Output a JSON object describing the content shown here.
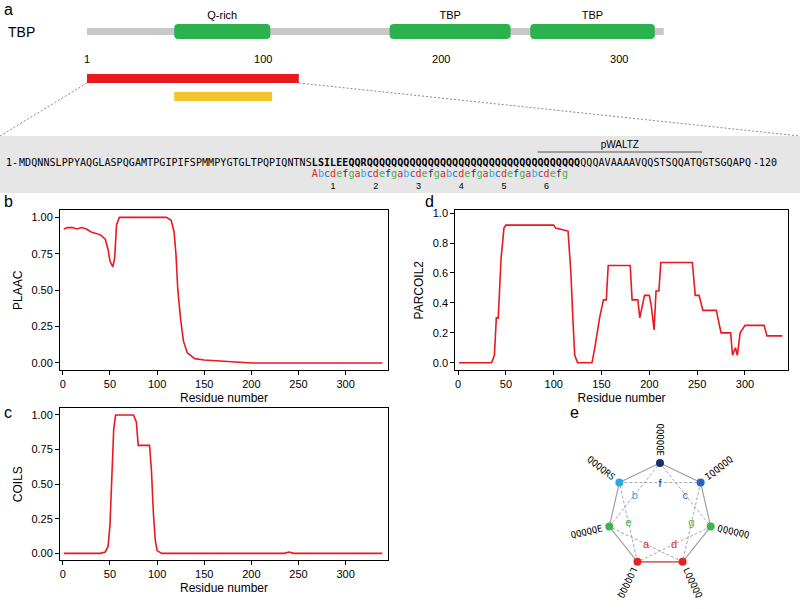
{
  "panel_a": {
    "label": "a",
    "protein": {
      "name": "TBP",
      "length": 325,
      "domain_color": "#2bb24c",
      "domains": [
        {
          "label": "Q-rich",
          "start": 50,
          "end": 104
        },
        {
          "label": "TBP",
          "start": 171,
          "end": 239
        },
        {
          "label": "TBP",
          "start": 250,
          "end": 320
        }
      ],
      "ticks": [
        1,
        100,
        200,
        300
      ]
    },
    "regions": [
      {
        "start": 1,
        "end": 120,
        "color": "#e8191f"
      },
      {
        "start": 50,
        "end": 105,
        "color": "#f4c430"
      }
    ],
    "sequence": {
      "start_label": "1-",
      "end_label": "-120",
      "residues": "MDQNNSLPPYAQGLASPQGAMTPGIPIFSPMMPYGTGLTPQPIQNTNSLSILEEQQRQQQQQQQQQQQQQQQQQQQQQQQQQQQQQQQQQQQQQQAVAAAAVQQSTSQQATQGTSGQAPQ",
      "bold_start": 49,
      "bold_end": 92,
      "motif": {
        "label": "pWALTZ",
        "start": 86,
        "end": 112
      },
      "heptads": {
        "start": 49,
        "letters": "Abcdefgabcdefgabcdefgabcdefgabcdefgabcdefg",
        "numbers": [
          1,
          2,
          3,
          4,
          5,
          6
        ]
      }
    }
  },
  "chart_data": [
    {
      "panel_label": "b",
      "type": "line",
      "color": "#e8191f",
      "xlabel": "Residue number",
      "ylabel": "PLAAC",
      "x": [
        1,
        5,
        10,
        15,
        20,
        25,
        30,
        35,
        40,
        45,
        48,
        50,
        53,
        55,
        57,
        60,
        70,
        80,
        90,
        100,
        110,
        115,
        118,
        120,
        122,
        125,
        128,
        132,
        140,
        150,
        170,
        200,
        250,
        300,
        339
      ],
      "values": [
        0.92,
        0.93,
        0.93,
        0.92,
        0.93,
        0.92,
        0.9,
        0.89,
        0.88,
        0.85,
        0.78,
        0.7,
        0.66,
        0.72,
        0.95,
        1.0,
        1.0,
        1.0,
        1.0,
        1.0,
        1.0,
        0.98,
        0.9,
        0.75,
        0.5,
        0.3,
        0.15,
        0.07,
        0.03,
        0.02,
        0.01,
        0,
        0,
        0,
        0
      ],
      "xlim": [
        -3,
        345
      ],
      "xticks": [
        0,
        50,
        100,
        150,
        200,
        250,
        300
      ],
      "ylim": [
        -0.05,
        1.05
      ],
      "yticks": [
        {
          "value": 0,
          "label": "0.00"
        },
        {
          "value": 0.25,
          "label": "0.25"
        },
        {
          "value": 0.5,
          "label": "0.50"
        },
        {
          "value": 0.75,
          "label": "0.75"
        },
        {
          "value": 1,
          "label": "1.00"
        }
      ],
      "grid": false
    },
    {
      "panel_label": "c",
      "type": "line",
      "color": "#e8191f",
      "xlabel": "Residue number",
      "ylabel": "COILS",
      "x": [
        1,
        40,
        45,
        48,
        50,
        52,
        54,
        56,
        75,
        78,
        80,
        92,
        94,
        96,
        98,
        100,
        105,
        235,
        240,
        245,
        339
      ],
      "values": [
        0,
        0,
        0.01,
        0.05,
        0.2,
        0.6,
        0.9,
        1.0,
        1.0,
        0.95,
        0.78,
        0.78,
        0.6,
        0.3,
        0.1,
        0.02,
        0,
        0,
        0.01,
        0,
        0
      ],
      "xlim": [
        -3,
        345
      ],
      "xticks": [
        0,
        50,
        100,
        150,
        200,
        250,
        300
      ],
      "ylim": [
        -0.05,
        1.05
      ],
      "yticks": [
        {
          "value": 0,
          "label": "0.00"
        },
        {
          "value": 0.25,
          "label": "0.25"
        },
        {
          "value": 0.5,
          "label": "0.50"
        },
        {
          "value": 0.75,
          "label": "0.75"
        },
        {
          "value": 1,
          "label": "1.00"
        }
      ],
      "grid": false
    },
    {
      "panel_label": "d",
      "type": "line",
      "color": "#e8191f",
      "xlabel": "Residue number",
      "ylabel": "PARCOIL2",
      "x": [
        1,
        35,
        38,
        40,
        42,
        45,
        48,
        50,
        100,
        102,
        115,
        118,
        120,
        122,
        125,
        140,
        143,
        148,
        152,
        155,
        157,
        180,
        182,
        188,
        190,
        195,
        200,
        202,
        205,
        207,
        210,
        212,
        245,
        248,
        252,
        256,
        270,
        275,
        285,
        287,
        290,
        292,
        295,
        300,
        320,
        323,
        339
      ],
      "values": [
        0,
        0,
        0.05,
        0.3,
        0.3,
        0.7,
        0.9,
        0.92,
        0.92,
        0.9,
        0.88,
        0.6,
        0.3,
        0.05,
        0,
        0,
        0.1,
        0.3,
        0.42,
        0.42,
        0.65,
        0.65,
        0.42,
        0.42,
        0.3,
        0.45,
        0.45,
        0.38,
        0.22,
        0.48,
        0.48,
        0.67,
        0.67,
        0.45,
        0.45,
        0.35,
        0.35,
        0.2,
        0.2,
        0.05,
        0.1,
        0.05,
        0.2,
        0.25,
        0.25,
        0.18,
        0.18
      ],
      "xlim": [
        -3,
        345
      ],
      "xticks": [
        0,
        50,
        100,
        150,
        200,
        250,
        300
      ],
      "ylim": [
        -0.05,
        1.02
      ],
      "yticks": [
        {
          "value": 0,
          "label": "0.0"
        },
        {
          "value": 0.2,
          "label": "0.2"
        },
        {
          "value": 0.4,
          "label": "0.4"
        },
        {
          "value": 0.6,
          "label": "0.6"
        },
        {
          "value": 0.8,
          "label": "0.8"
        },
        {
          "value": 1,
          "label": "1.0"
        }
      ],
      "grid": false
    }
  ],
  "panel_e": {
    "label": "e",
    "positions": [
      {
        "letter": "f",
        "residues": "QQQQQE",
        "color": "#1b2f6e"
      },
      {
        "letter": "c",
        "residues": "IQQQQQ",
        "color": "#2a63c4"
      },
      {
        "letter": "g",
        "residues": "QQQQQQ",
        "color": "#3cb54a"
      },
      {
        "letter": "d",
        "residues": "LQQQQQ",
        "color": "#e0261f"
      },
      {
        "letter": "a",
        "residues": "LQQQQQ",
        "color": "#e0261f"
      },
      {
        "letter": "e",
        "residues": "QQQQQE",
        "color": "#3cb54a"
      },
      {
        "letter": "b",
        "residues": "QQQQRS",
        "color": "#2aa8e0"
      }
    ]
  }
}
